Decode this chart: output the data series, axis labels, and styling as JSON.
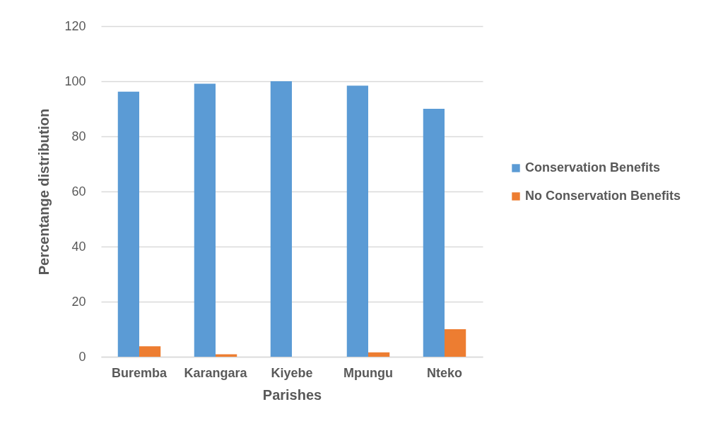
{
  "chart_data": {
    "type": "bar",
    "categories": [
      "Buremba",
      "Karangara",
      "Kiyebe",
      "Mpungu",
      "Nteko"
    ],
    "series": [
      {
        "name": "Conservation Benefits",
        "color": "#5b9bd5",
        "values": [
          96.2,
          99.1,
          100,
          98.4,
          90
        ]
      },
      {
        "name": "No Conservation  Benefits",
        "color": "#ed7d31",
        "values": [
          3.8,
          0.9,
          0,
          1.6,
          10
        ]
      }
    ],
    "xlabel": "Parishes",
    "ylabel": "Percentange distribution",
    "ylim": [
      0,
      120
    ],
    "yticks": [
      0,
      20,
      40,
      60,
      80,
      100,
      120
    ],
    "grid": "y",
    "legend": "right"
  }
}
